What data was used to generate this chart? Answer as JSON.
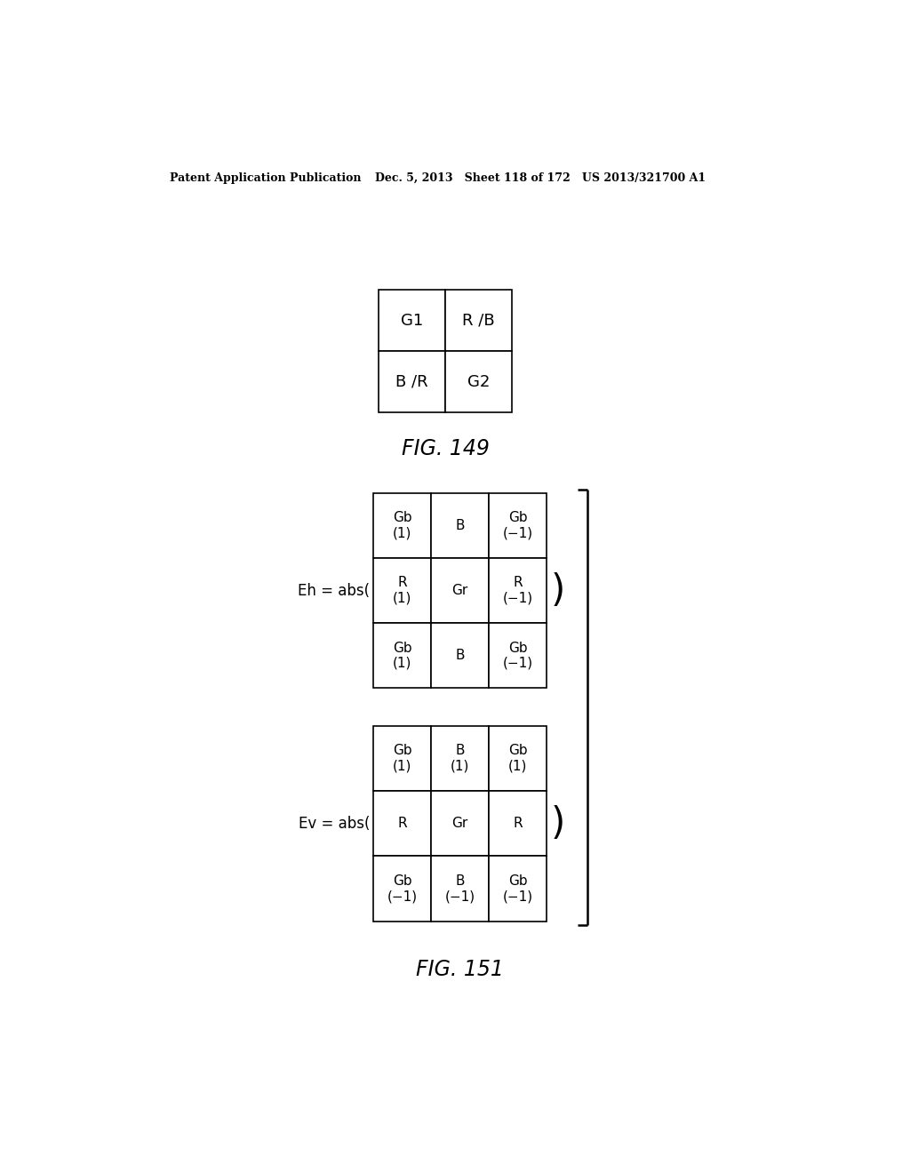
{
  "header_left": "Patent Application Publication",
  "header_right": "Dec. 5, 2013   Sheet 118 of 172   US 2013/321700 A1",
  "fig149_label": "FIG. 149",
  "fig151_label": "FIG. 151",
  "fig149_cells": [
    [
      "G1",
      "R /B"
    ],
    [
      "B /R",
      "G2"
    ]
  ],
  "eh_label": "Eh = abs(",
  "ev_label": "Ev = abs(",
  "eh_cells": [
    [
      "Gb\n(1)",
      "B",
      "Gb\n(−1)"
    ],
    [
      "R\n(1)",
      "Gr",
      "R\n(−1)"
    ],
    [
      "Gb\n(1)",
      "B",
      "Gb\n(−1)"
    ]
  ],
  "ev_cells": [
    [
      "Gb\n(1)",
      "B\n(1)",
      "Gb\n(1)"
    ],
    [
      "R",
      "Gr",
      "R"
    ],
    [
      "Gb\n(−1)",
      "B\n(−1)",
      "Gb\n(−1)"
    ]
  ],
  "bg_color": "#ffffff",
  "text_color": "#000000",
  "line_color": "#000000"
}
